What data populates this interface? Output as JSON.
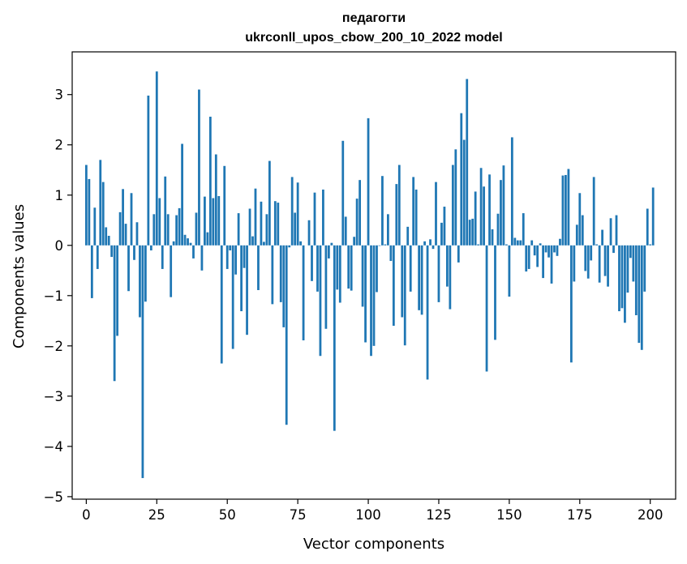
{
  "chart_data": {
    "type": "bar",
    "title": "педагогти",
    "subtitle": "ukrconll_upos_cbow_200_10_2022 model",
    "xlabel": "Vector components",
    "ylabel": "Components values",
    "xlim": [
      -5,
      209
    ],
    "ylim": [
      -5.05,
      3.85
    ],
    "xticks": [
      0,
      25,
      50,
      75,
      100,
      125,
      150,
      175,
      200
    ],
    "yticks": [
      -5,
      -4,
      -3,
      -2,
      -1,
      0,
      1,
      2,
      3
    ],
    "grid": false,
    "legend": "none",
    "bar_color": "#1f77b4",
    "values": [
      1.6,
      1.32,
      -1.05,
      0.75,
      -0.47,
      1.7,
      1.26,
      0.36,
      0.19,
      -0.23,
      -2.7,
      -1.8,
      0.66,
      1.12,
      0.43,
      -0.91,
      1.04,
      -0.29,
      0.46,
      -1.43,
      -4.63,
      -1.12,
      2.98,
      -0.1,
      0.62,
      3.46,
      0.94,
      -0.47,
      1.37,
      0.62,
      -1.03,
      0.08,
      0.6,
      0.74,
      2.02,
      0.21,
      0.14,
      0.05,
      -0.26,
      0.65,
      3.1,
      -0.5,
      0.97,
      0.26,
      2.56,
      0.94,
      1.81,
      0.98,
      -2.35,
      1.58,
      -0.47,
      -0.1,
      -2.06,
      -0.58,
      0.64,
      -1.31,
      -0.45,
      -1.78,
      0.73,
      0.18,
      1.13,
      -0.89,
      0.87,
      0.07,
      0.62,
      1.68,
      -1.17,
      0.88,
      0.85,
      -1.13,
      -1.63,
      -3.57,
      -0.04,
      1.36,
      0.65,
      1.25,
      0.08,
      -1.89,
      0.0,
      0.5,
      -0.71,
      1.05,
      -0.92,
      -2.2,
      1.11,
      -1.66,
      -0.26,
      0.05,
      -3.69,
      -0.88,
      -1.14,
      2.08,
      0.57,
      -0.86,
      -0.9,
      0.17,
      0.93,
      1.3,
      -1.22,
      -1.93,
      2.53,
      -2.2,
      -2.0,
      -0.93,
      -0.01,
      1.38,
      0.02,
      0.62,
      -0.31,
      -1.6,
      1.22,
      1.6,
      -1.43,
      -1.99,
      0.37,
      -0.92,
      1.36,
      1.11,
      -1.29,
      -1.38,
      0.08,
      -2.67,
      0.12,
      -0.07,
      1.26,
      -1.13,
      0.45,
      0.77,
      -0.82,
      -1.27,
      1.6,
      1.91,
      -0.34,
      2.63,
      2.1,
      3.31,
      0.51,
      0.53,
      1.07,
      0.02,
      1.54,
      1.17,
      -2.51,
      1.41,
      0.32,
      -1.88,
      0.63,
      1.3,
      1.59,
      0.02,
      -1.02,
      2.15,
      0.15,
      0.1,
      0.1,
      0.64,
      -0.52,
      -0.47,
      0.1,
      -0.2,
      -0.43,
      0.04,
      -0.65,
      -0.14,
      -0.24,
      -0.76,
      -0.14,
      -0.21,
      0.13,
      1.39,
      1.4,
      1.52,
      -2.33,
      -0.72,
      0.41,
      1.04,
      0.6,
      -0.51,
      -0.66,
      -0.3,
      1.36,
      0.02,
      -0.74,
      0.31,
      -0.61,
      -0.82,
      0.54,
      -0.15,
      0.6,
      -1.31,
      -1.25,
      -1.54,
      -0.94,
      -0.25,
      -0.72,
      -1.39,
      -1.94,
      -2.08,
      -0.92,
      0.73,
      0.02,
      1.15
    ]
  }
}
